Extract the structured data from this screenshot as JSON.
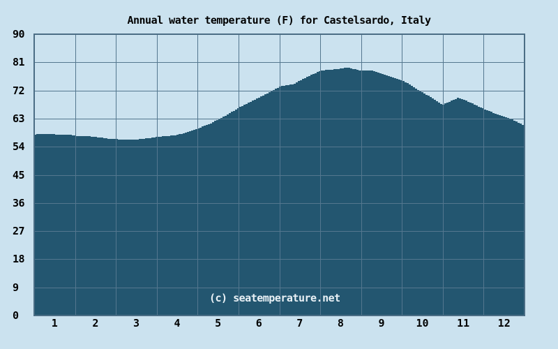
{
  "chart_data": {
    "type": "area",
    "title": "Annual water temperature (F) for Castelsardo, Italy",
    "watermark": "(c) seatemperature.net",
    "xlabel": "",
    "ylabel": "",
    "xlim": [
      0,
      12
    ],
    "ylim": [
      0,
      90
    ],
    "grid": true,
    "legend": "none",
    "x_ticks": [
      "1",
      "2",
      "3",
      "4",
      "5",
      "6",
      "7",
      "8",
      "9",
      "10",
      "11",
      "12"
    ],
    "y_ticks": [
      0,
      9,
      18,
      27,
      36,
      45,
      54,
      63,
      72,
      81,
      90
    ],
    "colors": {
      "background": "#cbe2ef",
      "area": "#235670",
      "grid": "#54778f",
      "border": "#4b6d85",
      "text": "#000000",
      "watermark": "#e9f1f6"
    },
    "series": [
      {
        "name": "Water temperature (F)",
        "x_unit": "month position (0 = Jan 1, 12 = Dec 31)",
        "y_unit": "degrees Fahrenheit",
        "points": [
          [
            0.0,
            57.9
          ],
          [
            0.1,
            58.1
          ],
          [
            0.22,
            58.0
          ],
          [
            0.35,
            58.1
          ],
          [
            0.53,
            57.9
          ],
          [
            0.7,
            57.9
          ],
          [
            0.87,
            57.8
          ],
          [
            1.01,
            57.5
          ],
          [
            1.3,
            57.4
          ],
          [
            1.55,
            57.0
          ],
          [
            1.8,
            56.6
          ],
          [
            2.01,
            56.4
          ],
          [
            2.32,
            56.3
          ],
          [
            2.58,
            56.4
          ],
          [
            2.8,
            56.8
          ],
          [
            3.02,
            57.2
          ],
          [
            3.26,
            57.4
          ],
          [
            3.52,
            57.9
          ],
          [
            3.77,
            58.9
          ],
          [
            4.03,
            60.1
          ],
          [
            4.28,
            61.3
          ],
          [
            4.51,
            63.0
          ],
          [
            4.63,
            63.7
          ],
          [
            5.02,
            66.7
          ],
          [
            5.31,
            68.6
          ],
          [
            5.65,
            70.8
          ],
          [
            6.01,
            73.4
          ],
          [
            6.33,
            74.1
          ],
          [
            6.67,
            76.4
          ],
          [
            7.0,
            78.4
          ],
          [
            7.36,
            78.8
          ],
          [
            7.5,
            79.0
          ],
          [
            7.61,
            79.4
          ],
          [
            7.78,
            78.9
          ],
          [
            8.01,
            78.3
          ],
          [
            8.21,
            78.5
          ],
          [
            8.38,
            77.8
          ],
          [
            8.72,
            76.4
          ],
          [
            9.01,
            75.1
          ],
          [
            9.41,
            71.9
          ],
          [
            9.75,
            69.3
          ],
          [
            9.97,
            67.4
          ],
          [
            10.17,
            68.6
          ],
          [
            10.34,
            69.6
          ],
          [
            10.52,
            68.9
          ],
          [
            10.77,
            67.4
          ],
          [
            11.01,
            65.9
          ],
          [
            11.28,
            64.5
          ],
          [
            11.63,
            63.0
          ],
          [
            12.0,
            60.6
          ]
        ]
      }
    ]
  }
}
